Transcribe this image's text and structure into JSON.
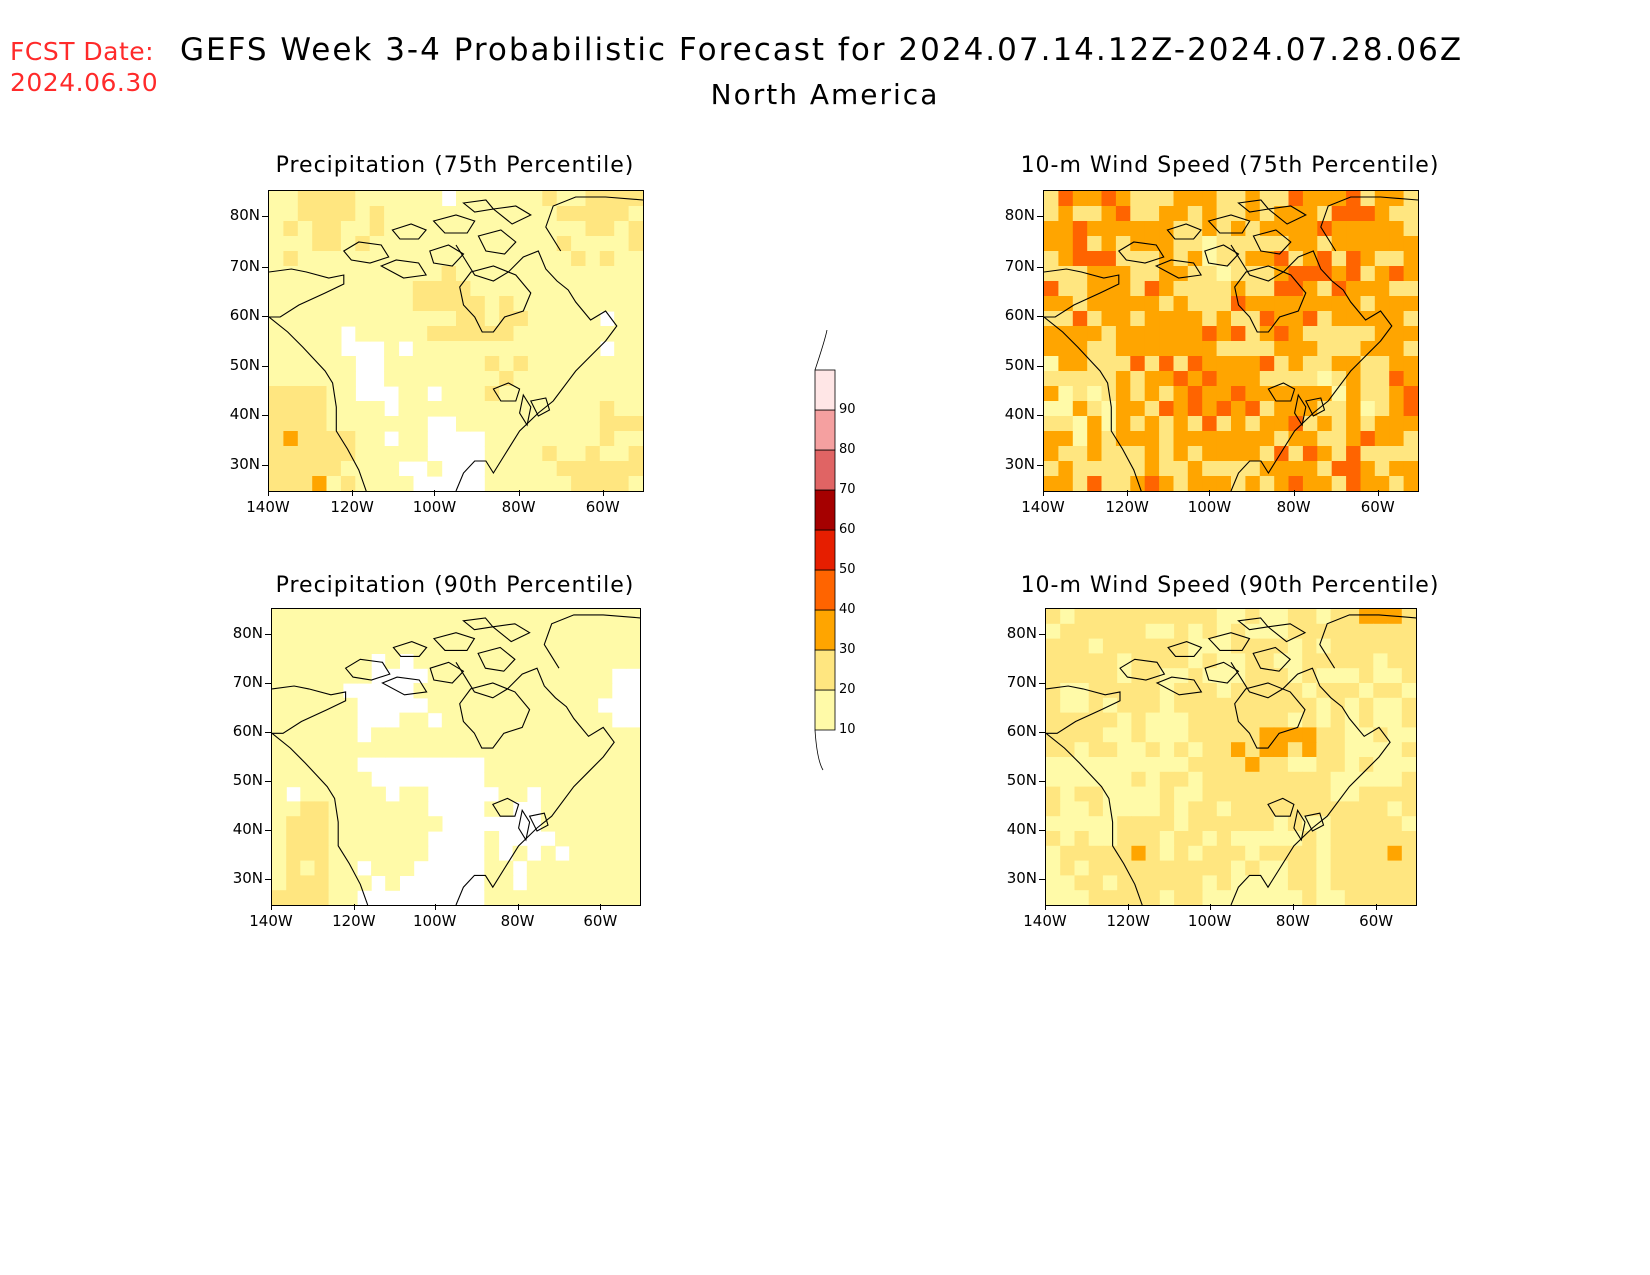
{
  "header": {
    "fcst_label": "FCST Date:",
    "fcst_date": "2024.06.30",
    "title": "GEFS Week 3-4 Probabilistic Forecast for 2024.07.14.12Z-2024.07.28.06Z",
    "region": "North America"
  },
  "panels": [
    {
      "id": "precip75",
      "title": "Precipitation (75th Percentile)",
      "intensity": 0.7
    },
    {
      "id": "wind75",
      "title": "10-m Wind Speed (75th Percentile)",
      "intensity": 2.2
    },
    {
      "id": "precip90",
      "title": "Precipitation (90th Percentile)",
      "intensity": 0.35
    },
    {
      "id": "wind90",
      "title": "10-m Wind Speed (90th Percentile)",
      "intensity": 1.15
    }
  ],
  "lat_labels": [
    "80N",
    "70N",
    "60N",
    "50N",
    "40N",
    "30N"
  ],
  "lon_labels": [
    "140W",
    "120W",
    "100W",
    "80W",
    "60W"
  ],
  "legend": {
    "levels": [
      "10",
      "20",
      "30",
      "40",
      "50",
      "60",
      "70",
      "80",
      "90"
    ],
    "colors": [
      "#fffaa8",
      "#ffe680",
      "#ffa500",
      "#ff6400",
      "#e61e00",
      "#a50000",
      "#e06464",
      "#f5a0a0",
      "#ffe6e6"
    ]
  }
}
